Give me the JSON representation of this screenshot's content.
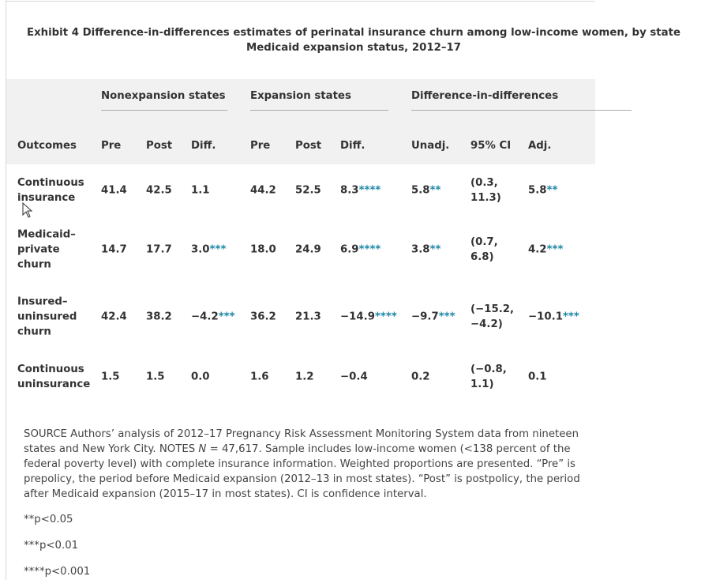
{
  "title": "Exhibit 4 Difference-in-differences estimates of perinatal insurance churn among low-income women, by state Medicaid expansion status, 2012–17",
  "table": {
    "groups": [
      "Nonexpansion states",
      "Expansion states",
      "Difference-in-differences"
    ],
    "columns": [
      "Outcomes",
      "Pre",
      "Post",
      "Diff.",
      "Pre",
      "Post",
      "Diff.",
      "Unadj.",
      "95% CI",
      "Adj."
    ],
    "rows": [
      [
        {
          "text": "Continuous insurance"
        },
        {
          "text": "41.4"
        },
        {
          "text": "42.5"
        },
        {
          "text": "1.1"
        },
        {
          "text": "44.2"
        },
        {
          "text": "52.5"
        },
        {
          "text": "8.3",
          "sig": "****"
        },
        {
          "text": "5.8",
          "sig": "**"
        },
        {
          "text": "(0.3, 11.3)"
        },
        {
          "text": "5.8",
          "sig": "**"
        }
      ],
      [
        {
          "text": "Medicaid–private churn"
        },
        {
          "text": "14.7"
        },
        {
          "text": "17.7"
        },
        {
          "text": "3.0",
          "sig": "***"
        },
        {
          "text": "18.0"
        },
        {
          "text": "24.9"
        },
        {
          "text": "6.9",
          "sig": "****"
        },
        {
          "text": "3.8",
          "sig": "**"
        },
        {
          "text": "(0.7, 6.8)"
        },
        {
          "text": "4.2",
          "sig": "***"
        }
      ],
      [
        {
          "text": "Insured–uninsured churn"
        },
        {
          "text": "42.4"
        },
        {
          "text": "38.2"
        },
        {
          "text": "−4.2",
          "sig": "***"
        },
        {
          "text": "36.2"
        },
        {
          "text": "21.3"
        },
        {
          "text": "−14.9",
          "sig": "****"
        },
        {
          "text": "−9.7",
          "sig": "***"
        },
        {
          "text": "(−15.2, −4.2)"
        },
        {
          "text": "−10.1",
          "sig": "***"
        }
      ],
      [
        {
          "text": "Continuous uninsurance"
        },
        {
          "text": "1.5"
        },
        {
          "text": "1.5"
        },
        {
          "text": "0.0"
        },
        {
          "text": "1.6"
        },
        {
          "text": "1.2"
        },
        {
          "text": "−0.4"
        },
        {
          "text": "0.2"
        },
        {
          "text": "(−0.8, 1.1)"
        },
        {
          "text": "0.1"
        }
      ]
    ]
  },
  "notes": {
    "source": [
      "SOURCE Authors’ analysis of 2012–17 Pregnancy Risk Assessment Monitoring System data from nineteen states and New York City. NOTES ",
      "N",
      " = 47,617. Sample includes low-income women (<138 percent of the federal poverty level) with complete insurance information. Weighted proportions are presented. “Pre” is prepolicy, the period before Medicaid expansion (2012–13 in most states). “Post” is postpolicy, the period after Medicaid expansion (2015–17 in most states). CI is confidence interval."
    ],
    "significance": [
      "**p<0.05",
      "***p<0.01",
      "****p<0.001"
    ]
  }
}
